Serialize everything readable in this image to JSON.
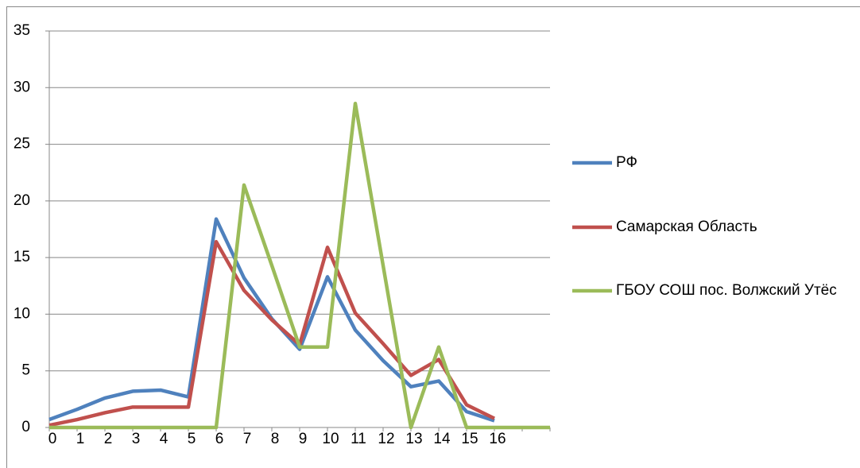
{
  "chart_data": {
    "type": "line",
    "categories": [
      "0",
      "1",
      "2",
      "3",
      "4",
      "5",
      "6",
      "7",
      "8",
      "9",
      "10",
      "11",
      "12",
      "13",
      "14",
      "15",
      "16",
      null,
      null
    ],
    "series": [
      {
        "name": "РФ",
        "color": "#4f81bd",
        "values": [
          0.7,
          1.6,
          2.6,
          3.2,
          3.3,
          2.7,
          18.4,
          13.2,
          9.6,
          6.9,
          13.3,
          8.6,
          5.9,
          3.6,
          4.1,
          1.4,
          0.6,
          null,
          null
        ]
      },
      {
        "name": "Самарская Область",
        "color": "#c0504d",
        "values": [
          0.2,
          0.7,
          1.3,
          1.8,
          1.8,
          1.8,
          16.4,
          12.1,
          9.5,
          7.3,
          15.9,
          10.1,
          7.4,
          4.6,
          6.0,
          2.0,
          0.8,
          null,
          null
        ]
      },
      {
        "name": "ГБОУ СОШ пос. Волжский Утёс",
        "color": "#9bbb59",
        "values": [
          0,
          0,
          0,
          0,
          0,
          0,
          0,
          21.4,
          14.3,
          7.1,
          7.1,
          28.6,
          14.3,
          0,
          7.1,
          0,
          0,
          0,
          0
        ]
      }
    ],
    "ylim": [
      0,
      35
    ],
    "yticks": [
      0,
      5,
      10,
      15,
      20,
      25,
      30,
      35
    ],
    "grid": true,
    "legend": "right"
  }
}
